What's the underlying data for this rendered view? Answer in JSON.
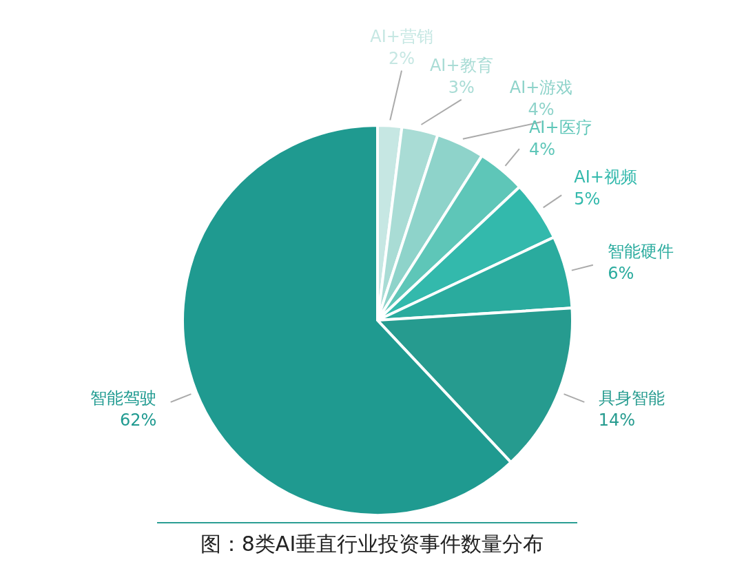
{
  "chart_data": {
    "type": "pie",
    "categories": [
      "AI+营销",
      "AI+教育",
      "AI+游戏",
      "AI+医疗",
      "AI+视频",
      "智能硬件",
      "具身智能",
      "智能驾驶"
    ],
    "values": [
      2,
      3,
      4,
      4,
      5,
      6,
      14,
      62
    ],
    "colors": [
      "#c6e7e3",
      "#a9dcd5",
      "#8ed3ca",
      "#5ec6b8",
      "#33b9ac",
      "#2aab9e",
      "#269b8f",
      "#1f9a90"
    ],
    "value_labels": [
      "2%",
      "3%",
      "4%",
      "4%",
      "5%",
      "6%",
      "14%",
      "62%"
    ],
    "legend": false,
    "annotations": [
      "图：8类AI垂直行业投资事件数量分布"
    ]
  }
}
